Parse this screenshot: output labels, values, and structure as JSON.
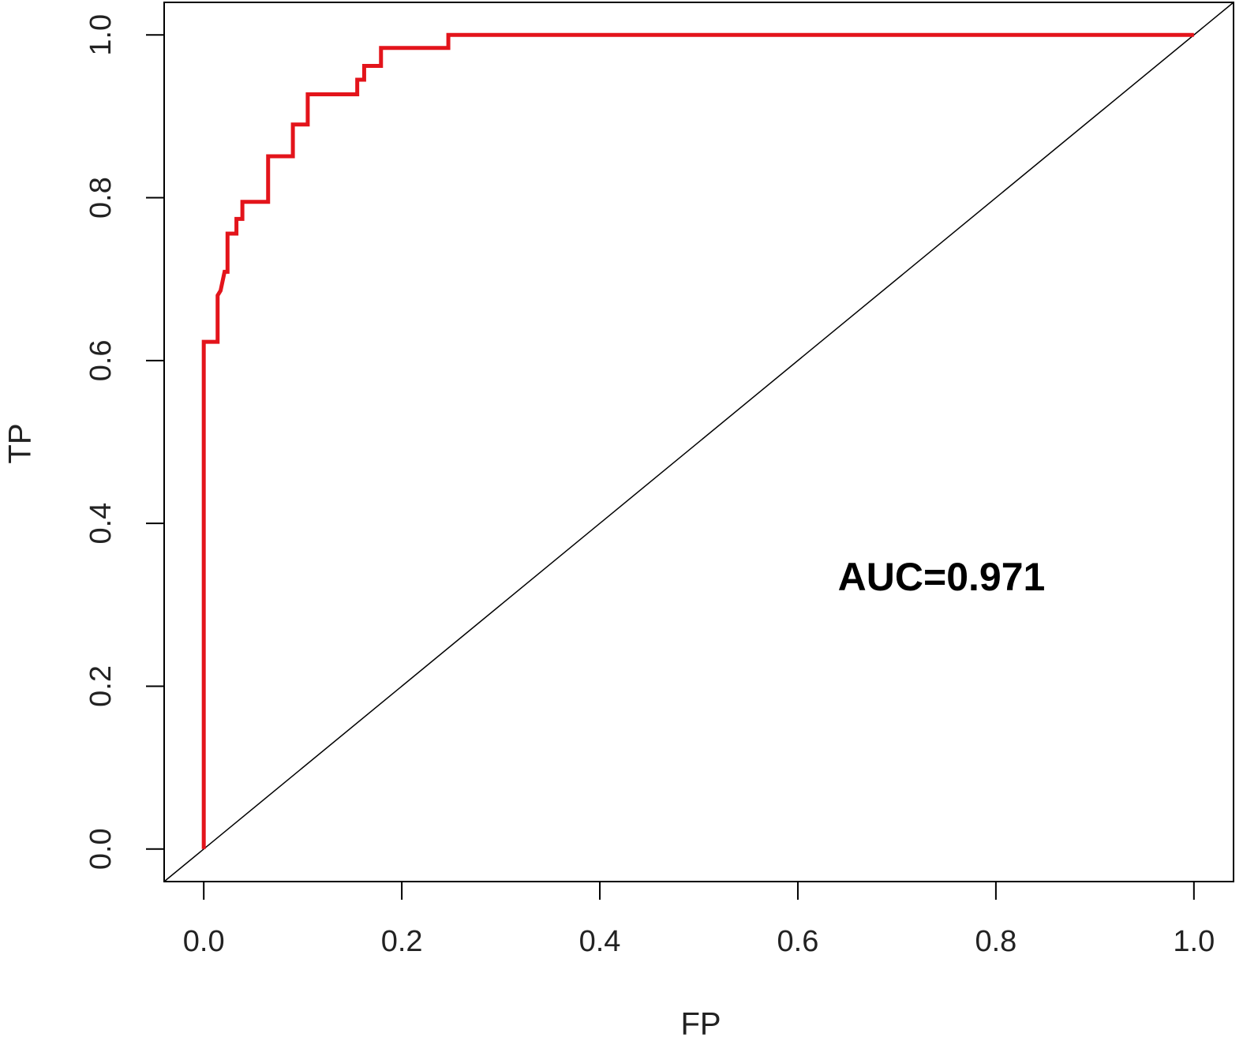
{
  "chart_data": {
    "type": "line",
    "x_label": "FP",
    "y_label": "TP",
    "annotation": "AUC=0.971",
    "xlim": [
      -0.04,
      1.04
    ],
    "ylim": [
      -0.04,
      1.04
    ],
    "xticks": [
      {
        "value": 0,
        "label": "0.0"
      },
      0.2,
      0.4,
      0.6,
      0.8,
      {
        "value": 1,
        "label": "1.0"
      }
    ],
    "yticks": [
      {
        "value": 0,
        "label": "0.0"
      },
      0.2,
      0.4,
      0.6,
      0.8,
      {
        "value": 1,
        "label": "1.0"
      }
    ],
    "grid": false,
    "series": [
      {
        "color": "#e3141b",
        "x": [
          0,
          0,
          0.014,
          0.014,
          0.017,
          0.021,
          0.024,
          0.024,
          0.033,
          0.033,
          0.039,
          0.039,
          0.065,
          0.065,
          0.09,
          0.09,
          0.105,
          0.105,
          0.155,
          0.155,
          0.162,
          0.162,
          0.179,
          0.179,
          0.247,
          0.247,
          1
        ],
        "values": [
          0,
          0.623,
          0.623,
          0.68,
          0.686,
          0.709,
          0.709,
          0.756,
          0.756,
          0.774,
          0.774,
          0.795,
          0.795,
          0.851,
          0.851,
          0.89,
          0.89,
          0.927,
          0.927,
          0.945,
          0.945,
          0.962,
          0.962,
          0.984,
          0.984,
          1,
          1
        ]
      }
    ],
    "reference_line": {
      "slope": 1,
      "intercept": 0,
      "color": "#000000"
    }
  }
}
